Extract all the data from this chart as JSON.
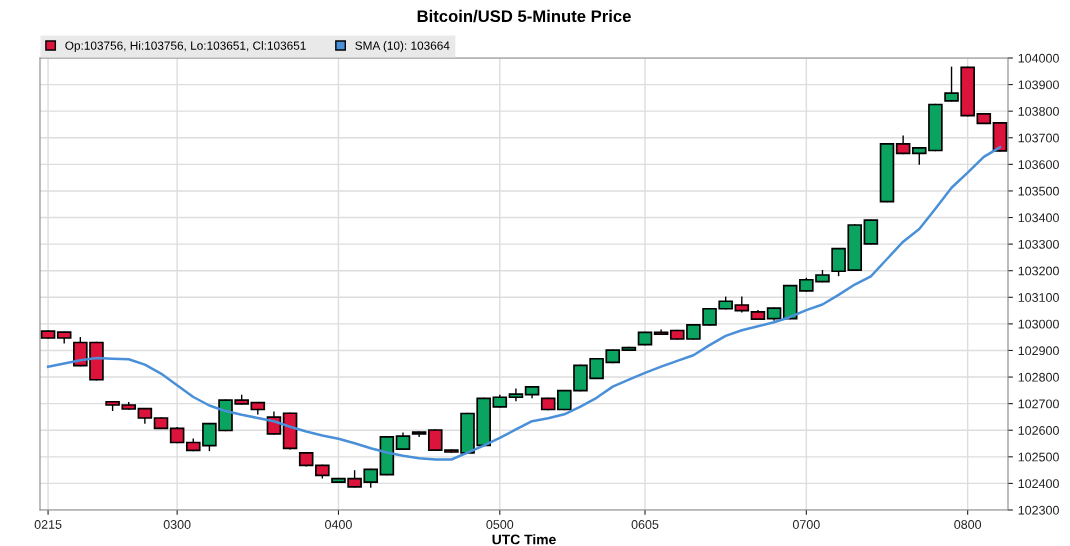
{
  "chart_data": {
    "type": "candlestick",
    "title": "Bitcoin/USD 5-Minute Price",
    "xlabel": "UTC Time",
    "categories": [
      "0215",
      null,
      null,
      null,
      null,
      null,
      null,
      null,
      "0300",
      null,
      null,
      null,
      null,
      null,
      null,
      null,
      null,
      null,
      "0400",
      null,
      null,
      null,
      null,
      null,
      null,
      null,
      null,
      null,
      "0500",
      null,
      null,
      null,
      null,
      null,
      null,
      null,
      null,
      "0605",
      null,
      null,
      null,
      null,
      null,
      null,
      null,
      null,
      null,
      "0700",
      null,
      null,
      null,
      null,
      null,
      null,
      null,
      null,
      null,
      "0800",
      null,
      null
    ],
    "series": [
      {
        "name": "Op:103756, Hi:103756, Lo:103651, Cl:103651",
        "color": "#dc143c",
        "ohlc": [
          [
            102973,
            102973,
            102947,
            102947
          ],
          [
            102969,
            102969,
            102929,
            102947
          ],
          [
            102930,
            102948,
            102843,
            102843
          ],
          [
            102930,
            102930,
            102790,
            102790
          ],
          [
            102707,
            102707,
            102675,
            102695
          ],
          [
            102695,
            102704,
            102680,
            102680
          ],
          [
            102681,
            102681,
            102627,
            102646
          ],
          [
            102646,
            102646,
            102607,
            102607
          ],
          [
            102607,
            102610,
            102554,
            102554
          ],
          [
            102554,
            102566,
            102524,
            102524
          ],
          [
            102542,
            102625,
            102524,
            102625
          ],
          [
            102599,
            102713,
            102599,
            102713
          ],
          [
            102713,
            102731,
            102699,
            102699
          ],
          [
            102704,
            102704,
            102662,
            102678
          ],
          [
            102649,
            102668,
            102586,
            102586
          ],
          [
            102664,
            102664,
            102530,
            102532
          ],
          [
            102515,
            102515,
            102466,
            102468
          ],
          [
            102468,
            102468,
            102421,
            102430
          ],
          [
            102405,
            102418,
            102405,
            102418
          ],
          [
            102418,
            102447,
            102387,
            102387
          ],
          [
            102405,
            102453,
            102386,
            102453
          ],
          [
            102433,
            102575,
            102433,
            102575
          ],
          [
            102529,
            102589,
            102529,
            102578
          ],
          [
            102586,
            102593,
            102577,
            102593
          ],
          [
            102601,
            102601,
            102525,
            102525
          ],
          [
            102525,
            102525,
            102518,
            102518
          ],
          [
            102515,
            102663,
            102515,
            102663
          ],
          [
            102543,
            102720,
            102543,
            102720
          ],
          [
            102688,
            102731,
            102688,
            102724
          ],
          [
            102724,
            102754,
            102712,
            102736
          ],
          [
            102734,
            102763,
            102723,
            102763
          ],
          [
            102720,
            102720,
            102678,
            102678
          ],
          [
            102678,
            102749,
            102678,
            102749
          ],
          [
            102749,
            102844,
            102749,
            102844
          ],
          [
            102795,
            102869,
            102795,
            102869
          ],
          [
            102855,
            102901,
            102855,
            102901
          ],
          [
            102901,
            102911,
            102901,
            102911
          ],
          [
            102922,
            102968,
            102922,
            102968
          ],
          [
            102968,
            102976,
            102961,
            102961
          ],
          [
            102975,
            102975,
            102943,
            102943
          ],
          [
            102943,
            102996,
            102943,
            102996
          ],
          [
            102996,
            103057,
            102996,
            103057
          ],
          [
            103057,
            103100,
            103057,
            103085
          ],
          [
            103071,
            103100,
            103045,
            103050
          ],
          [
            103045,
            103050,
            103018,
            103018
          ],
          [
            103020,
            103059,
            103014,
            103059
          ],
          [
            103020,
            103144,
            103020,
            103144
          ],
          [
            103124,
            103171,
            103124,
            103166
          ],
          [
            103159,
            103200,
            103159,
            103184
          ],
          [
            103198,
            103283,
            103182,
            103283
          ],
          [
            103202,
            103372,
            103202,
            103372
          ],
          [
            103301,
            103390,
            103301,
            103390
          ],
          [
            103460,
            103677,
            103460,
            103677
          ],
          [
            103677,
            103706,
            103641,
            103641
          ],
          [
            103641,
            103662,
            103601,
            103662
          ],
          [
            103652,
            103825,
            103652,
            103825
          ],
          [
            103839,
            103965,
            103839,
            103868
          ],
          [
            103965,
            103965,
            103783,
            103783
          ],
          [
            103790,
            103790,
            103754,
            103754
          ],
          [
            103756,
            103756,
            103651,
            103651
          ]
        ],
        "colors": [
          "#dc143c",
          "#dc143c",
          "#dc143c",
          "#dc143c",
          "#dc143c",
          "#dc143c",
          "#dc143c",
          "#dc143c",
          "#dc143c",
          "#dc143c",
          "#0aa35f",
          "#0aa35f",
          "#dc143c",
          "#dc143c",
          "#dc143c",
          "#dc143c",
          "#dc143c",
          "#dc143c",
          "#0aa35f",
          "#dc143c",
          "#0aa35f",
          "#0aa35f",
          "#0aa35f",
          "#0aa35f",
          "#dc143c",
          "#dc143c",
          "#0aa35f",
          "#0aa35f",
          "#0aa35f",
          "#0aa35f",
          "#0aa35f",
          "#dc143c",
          "#0aa35f",
          "#0aa35f",
          "#0aa35f",
          "#0aa35f",
          "#0aa35f",
          "#0aa35f",
          "#dc143c",
          "#dc143c",
          "#0aa35f",
          "#0aa35f",
          "#0aa35f",
          "#dc143c",
          "#dc143c",
          "#0aa35f",
          "#0aa35f",
          "#0aa35f",
          "#0aa35f",
          "#0aa35f",
          "#0aa35f",
          "#0aa35f",
          "#0aa35f",
          "#dc143c",
          "#0aa35f",
          "#0aa35f",
          "#0aa35f",
          "#dc143c",
          "#dc143c",
          "#dc143c"
        ]
      },
      {
        "name": "SMA (10): 103664",
        "type": "line",
        "color": "#4a90d9",
        "values": [
          102839,
          102851,
          102863,
          102872,
          102869,
          102867,
          102847,
          102813,
          102769,
          102725,
          102693,
          102672,
          102658,
          102646,
          102634,
          102613,
          102595,
          102580,
          102568,
          102551,
          102532,
          102516,
          102504,
          102495,
          102490,
          102490,
          102516,
          102542,
          102571,
          102603,
          102634,
          102645,
          102660,
          102689,
          102722,
          102764,
          102790,
          102816,
          102839,
          102861,
          102882,
          102920,
          102955,
          102976,
          102991,
          103006,
          103026,
          103052,
          103073,
          103109,
          103148,
          103179,
          103244,
          103309,
          103357,
          103433,
          103512,
          103569,
          103628,
          103664
        ]
      }
    ],
    "ylim": [
      102300,
      104000
    ],
    "yticks": [
      102300,
      102400,
      102500,
      102600,
      102700,
      102800,
      102900,
      103000,
      103100,
      103200,
      103300,
      103400,
      103500,
      103600,
      103700,
      103800,
      103900,
      104000
    ],
    "grid": true,
    "legend": "top left"
  }
}
